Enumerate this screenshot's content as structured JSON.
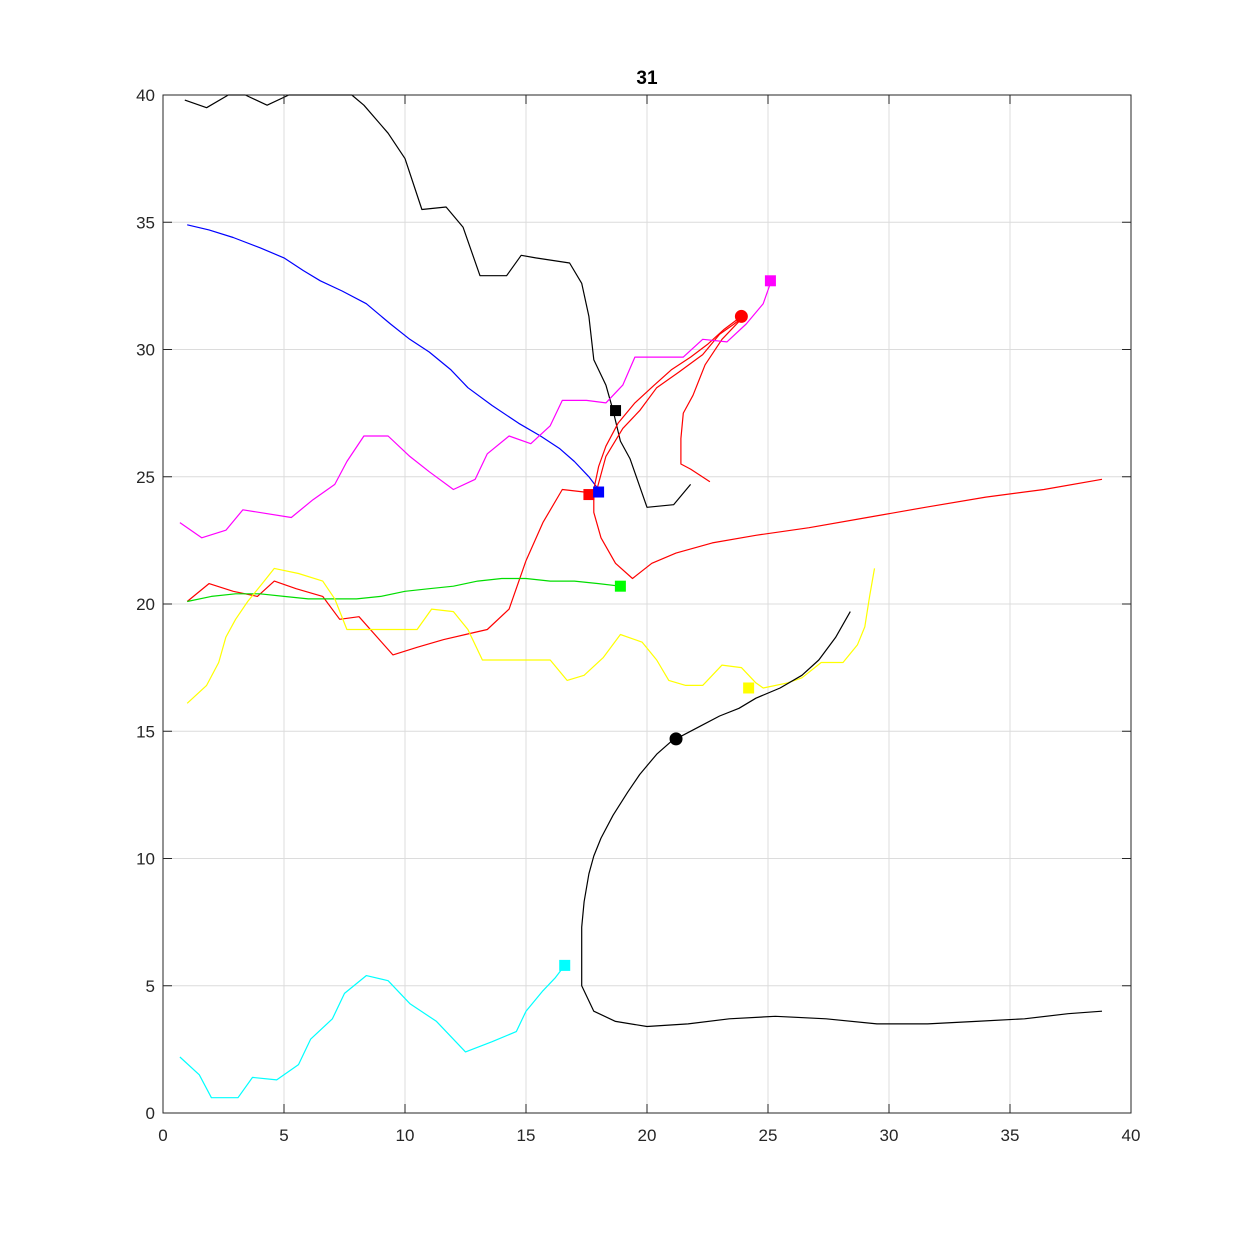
{
  "chart_data": {
    "type": "line",
    "title": "31",
    "xlabel": "",
    "ylabel": "",
    "xlim": [
      0,
      40
    ],
    "ylim": [
      0,
      40
    ],
    "xticks": [
      0,
      5,
      10,
      15,
      20,
      25,
      30,
      35,
      40
    ],
    "yticks": [
      0,
      5,
      10,
      15,
      20,
      25,
      30,
      35,
      40
    ],
    "grid": true,
    "series": [
      {
        "color": "#000000",
        "points": [
          [
            0.9,
            39.8
          ],
          [
            1.8,
            39.5
          ],
          [
            2.7,
            40.0
          ],
          [
            3.4,
            40.0
          ],
          [
            4.3,
            39.6
          ],
          [
            5.2,
            40.0
          ],
          [
            6.5,
            40.0
          ],
          [
            7.8,
            40.0
          ],
          [
            8.3,
            39.6
          ],
          [
            9.3,
            38.5
          ],
          [
            10.0,
            37.5
          ],
          [
            10.7,
            35.5
          ],
          [
            11.7,
            35.6
          ],
          [
            12.4,
            34.8
          ],
          [
            13.1,
            32.9
          ],
          [
            14.2,
            32.9
          ],
          [
            14.8,
            33.7
          ],
          [
            15.4,
            33.6
          ],
          [
            16.8,
            33.4
          ],
          [
            17.3,
            32.6
          ],
          [
            17.6,
            31.3
          ],
          [
            17.8,
            29.6
          ],
          [
            18.3,
            28.6
          ],
          [
            18.6,
            27.6
          ],
          [
            18.9,
            26.4
          ],
          [
            19.3,
            25.7
          ],
          [
            20.0,
            23.8
          ],
          [
            21.1,
            23.9
          ],
          [
            21.8,
            24.7
          ]
        ]
      },
      {
        "color": "#0000ff",
        "points": [
          [
            1.0,
            34.9
          ],
          [
            1.9,
            34.7
          ],
          [
            2.9,
            34.4
          ],
          [
            4.0,
            34.0
          ],
          [
            5.0,
            33.6
          ],
          [
            5.8,
            33.1
          ],
          [
            6.5,
            32.7
          ],
          [
            7.4,
            32.3
          ],
          [
            8.4,
            31.8
          ],
          [
            9.4,
            31.0
          ],
          [
            10.2,
            30.4
          ],
          [
            11.0,
            29.9
          ],
          [
            11.9,
            29.2
          ],
          [
            12.6,
            28.5
          ],
          [
            13.6,
            27.8
          ],
          [
            14.7,
            27.1
          ],
          [
            15.6,
            26.6
          ],
          [
            16.4,
            26.1
          ],
          [
            17.0,
            25.6
          ],
          [
            17.6,
            25.0
          ],
          [
            18.0,
            24.5
          ]
        ]
      },
      {
        "color": "#ff0000",
        "points": [
          [
            1.0,
            20.1
          ],
          [
            1.9,
            20.8
          ],
          [
            2.9,
            20.5
          ],
          [
            3.9,
            20.3
          ],
          [
            4.6,
            20.9
          ],
          [
            5.5,
            20.6
          ],
          [
            6.6,
            20.3
          ],
          [
            7.3,
            19.4
          ],
          [
            8.1,
            19.5
          ],
          [
            9.5,
            18.0
          ],
          [
            10.5,
            18.3
          ],
          [
            11.6,
            18.6
          ],
          [
            12.5,
            18.8
          ],
          [
            13.4,
            19.0
          ],
          [
            14.3,
            19.8
          ],
          [
            15.0,
            21.7
          ],
          [
            15.7,
            23.2
          ],
          [
            16.5,
            24.5
          ],
          [
            17.4,
            24.4
          ],
          [
            17.9,
            24.4
          ],
          [
            18.3,
            25.8
          ],
          [
            19.0,
            26.9
          ],
          [
            19.7,
            27.6
          ],
          [
            20.4,
            28.5
          ],
          [
            21.3,
            29.1
          ],
          [
            22.3,
            29.8
          ],
          [
            23.0,
            30.6
          ],
          [
            23.6,
            31.0
          ],
          [
            24.0,
            31.3
          ],
          [
            23.1,
            30.4
          ],
          [
            22.4,
            29.4
          ],
          [
            21.9,
            28.2
          ],
          [
            21.5,
            27.5
          ],
          [
            21.4,
            26.5
          ],
          [
            21.4,
            25.5
          ],
          [
            21.8,
            25.3
          ],
          [
            22.6,
            24.8
          ]
        ]
      },
      {
        "color": "#ff0000",
        "points": [
          [
            23.9,
            31.3
          ],
          [
            23.2,
            30.8
          ],
          [
            22.5,
            30.2
          ],
          [
            21.8,
            29.7
          ],
          [
            21.0,
            29.2
          ],
          [
            20.3,
            28.6
          ],
          [
            19.5,
            27.9
          ],
          [
            18.8,
            27.1
          ],
          [
            18.3,
            26.2
          ],
          [
            18.0,
            25.4
          ],
          [
            17.8,
            24.5
          ],
          [
            17.8,
            23.6
          ],
          [
            18.1,
            22.6
          ],
          [
            18.7,
            21.6
          ],
          [
            19.4,
            21.0
          ],
          [
            20.2,
            21.6
          ],
          [
            21.2,
            22.0
          ],
          [
            22.7,
            22.4
          ],
          [
            24.5,
            22.7
          ],
          [
            26.7,
            23.0
          ],
          [
            29.1,
            23.4
          ],
          [
            31.5,
            23.8
          ],
          [
            34.0,
            24.2
          ],
          [
            36.4,
            24.5
          ],
          [
            38.8,
            24.9
          ]
        ]
      },
      {
        "color": "#ff00ff",
        "points": [
          [
            0.7,
            23.2
          ],
          [
            1.6,
            22.6
          ],
          [
            2.6,
            22.9
          ],
          [
            3.3,
            23.7
          ],
          [
            5.3,
            23.4
          ],
          [
            6.2,
            24.1
          ],
          [
            7.1,
            24.7
          ],
          [
            7.6,
            25.6
          ],
          [
            8.3,
            26.6
          ],
          [
            9.3,
            26.6
          ],
          [
            10.2,
            25.8
          ],
          [
            11.0,
            25.2
          ],
          [
            12.0,
            24.5
          ],
          [
            12.9,
            24.9
          ],
          [
            13.4,
            25.9
          ],
          [
            14.3,
            26.6
          ],
          [
            15.2,
            26.3
          ],
          [
            16.0,
            27.0
          ],
          [
            16.5,
            28.0
          ],
          [
            17.5,
            28.0
          ],
          [
            18.3,
            27.9
          ],
          [
            19.0,
            28.6
          ],
          [
            19.5,
            29.7
          ],
          [
            20.5,
            29.7
          ],
          [
            21.5,
            29.7
          ],
          [
            22.3,
            30.4
          ],
          [
            23.3,
            30.3
          ],
          [
            24.1,
            31.0
          ],
          [
            24.8,
            31.8
          ],
          [
            25.1,
            32.6
          ]
        ]
      },
      {
        "color": "#00dd00",
        "points": [
          [
            1.0,
            20.1
          ],
          [
            2.0,
            20.3
          ],
          [
            3.0,
            20.4
          ],
          [
            4.0,
            20.4
          ],
          [
            5.0,
            20.3
          ],
          [
            6.0,
            20.2
          ],
          [
            7.0,
            20.2
          ],
          [
            8.0,
            20.2
          ],
          [
            9.0,
            20.3
          ],
          [
            10.0,
            20.5
          ],
          [
            11.0,
            20.6
          ],
          [
            12.0,
            20.7
          ],
          [
            13.0,
            20.9
          ],
          [
            14.0,
            21.0
          ],
          [
            15.0,
            21.0
          ],
          [
            16.0,
            20.9
          ],
          [
            17.0,
            20.9
          ],
          [
            18.0,
            20.8
          ],
          [
            18.9,
            20.7
          ]
        ]
      },
      {
        "color": "#ffff00",
        "points": [
          [
            1.0,
            16.1
          ],
          [
            1.8,
            16.8
          ],
          [
            2.3,
            17.7
          ],
          [
            2.6,
            18.7
          ],
          [
            3.0,
            19.4
          ],
          [
            3.5,
            20.1
          ],
          [
            4.1,
            20.8
          ],
          [
            4.6,
            21.4
          ],
          [
            5.6,
            21.2
          ],
          [
            6.6,
            20.9
          ],
          [
            7.1,
            20.2
          ],
          [
            7.6,
            19.0
          ],
          [
            9.1,
            19.0
          ],
          [
            10.5,
            19.0
          ],
          [
            11.1,
            19.8
          ],
          [
            12.0,
            19.7
          ],
          [
            12.6,
            19.0
          ],
          [
            13.2,
            17.8
          ],
          [
            14.6,
            17.8
          ],
          [
            16.0,
            17.8
          ],
          [
            16.7,
            17.0
          ],
          [
            17.4,
            17.2
          ],
          [
            18.2,
            17.9
          ],
          [
            18.9,
            18.8
          ],
          [
            19.8,
            18.5
          ],
          [
            20.4,
            17.8
          ],
          [
            20.9,
            17.0
          ],
          [
            21.6,
            16.8
          ],
          [
            22.3,
            16.8
          ],
          [
            23.1,
            17.6
          ],
          [
            23.9,
            17.5
          ],
          [
            24.5,
            16.9
          ],
          [
            24.8,
            16.7
          ],
          [
            25.8,
            16.9
          ],
          [
            26.4,
            17.1
          ],
          [
            27.2,
            17.7
          ],
          [
            28.1,
            17.7
          ],
          [
            28.7,
            18.4
          ],
          [
            29.0,
            19.1
          ],
          [
            29.2,
            20.3
          ],
          [
            29.4,
            21.4
          ]
        ]
      },
      {
        "color": "#000000",
        "points": [
          [
            28.4,
            19.7
          ],
          [
            27.8,
            18.7
          ],
          [
            27.1,
            17.8
          ],
          [
            26.4,
            17.2
          ],
          [
            25.5,
            16.7
          ],
          [
            24.5,
            16.3
          ],
          [
            23.8,
            15.9
          ],
          [
            23.0,
            15.6
          ],
          [
            22.2,
            15.2
          ],
          [
            21.6,
            14.9
          ],
          [
            21.0,
            14.6
          ],
          [
            20.4,
            14.1
          ],
          [
            19.7,
            13.3
          ],
          [
            19.2,
            12.6
          ],
          [
            18.6,
            11.7
          ],
          [
            18.1,
            10.8
          ],
          [
            17.8,
            10.1
          ],
          [
            17.6,
            9.4
          ],
          [
            17.4,
            8.3
          ],
          [
            17.3,
            7.3
          ],
          [
            17.3,
            6.2
          ],
          [
            17.3,
            5.0
          ],
          [
            17.8,
            4.0
          ],
          [
            18.7,
            3.6
          ],
          [
            20.0,
            3.4
          ],
          [
            21.7,
            3.5
          ],
          [
            23.4,
            3.7
          ],
          [
            25.3,
            3.8
          ],
          [
            27.4,
            3.7
          ],
          [
            29.5,
            3.5
          ],
          [
            31.6,
            3.5
          ],
          [
            33.6,
            3.6
          ],
          [
            35.6,
            3.7
          ],
          [
            37.4,
            3.9
          ],
          [
            38.8,
            4.0
          ]
        ]
      },
      {
        "color": "#00ffff",
        "points": [
          [
            0.7,
            2.2
          ],
          [
            1.5,
            1.5
          ],
          [
            2.0,
            0.6
          ],
          [
            3.1,
            0.6
          ],
          [
            3.7,
            1.4
          ],
          [
            4.7,
            1.3
          ],
          [
            5.6,
            1.9
          ],
          [
            6.1,
            2.9
          ],
          [
            7.0,
            3.7
          ],
          [
            7.5,
            4.7
          ],
          [
            8.4,
            5.4
          ],
          [
            9.3,
            5.2
          ],
          [
            10.2,
            4.3
          ],
          [
            11.3,
            3.6
          ],
          [
            12.5,
            2.4
          ],
          [
            13.6,
            2.8
          ],
          [
            14.6,
            3.2
          ],
          [
            15.0,
            4.0
          ],
          [
            15.7,
            4.8
          ],
          [
            16.2,
            5.3
          ],
          [
            16.6,
            5.8
          ]
        ]
      }
    ],
    "markers": [
      {
        "shape": "circle",
        "color": "#ff0000",
        "x": 23.9,
        "y": 31.3
      },
      {
        "shape": "circle",
        "color": "#000000",
        "x": 21.2,
        "y": 14.7
      },
      {
        "shape": "square",
        "color": "#ff00ff",
        "x": 25.1,
        "y": 32.7
      },
      {
        "shape": "square",
        "color": "#000000",
        "x": 18.7,
        "y": 27.6
      },
      {
        "shape": "square",
        "color": "#ff0000",
        "x": 17.6,
        "y": 24.3
      },
      {
        "shape": "square",
        "color": "#0000ff",
        "x": 18.0,
        "y": 24.4
      },
      {
        "shape": "square",
        "color": "#00ff00",
        "x": 18.9,
        "y": 20.7
      },
      {
        "shape": "square",
        "color": "#ffff00",
        "x": 24.2,
        "y": 16.7
      },
      {
        "shape": "square",
        "color": "#00ffff",
        "x": 16.6,
        "y": 5.8
      }
    ]
  }
}
